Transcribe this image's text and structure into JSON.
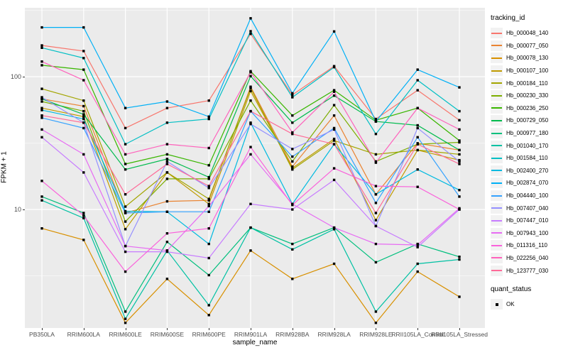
{
  "colors": {
    "panel_background": "#EBEBEB",
    "gridline": "#FFFFFF",
    "axis_text": "#4D4D4D",
    "tick_mark": "#333333",
    "point_marker": "#000000",
    "legend_key_background": "#F2F2F2"
  },
  "chart_data": {
    "type": "line",
    "title": "",
    "xlabel": "sample_name",
    "ylabel": "FPKM + 1",
    "y_scale": "log10",
    "ylim": [
      1.28,
      330
    ],
    "y_major_ticks": [
      10,
      100
    ],
    "y_minor_ticks": [
      3.162,
      31.62,
      316.2
    ],
    "grid": "on",
    "legend_position": "right",
    "marker": "small-black-square",
    "categories": [
      "PB350LA",
      "RRIM600LA",
      "RRIM600LE",
      "RRIM600SE",
      "RRIM600PE",
      "RRIM901LA",
      "RRIM928BA",
      "RRIM928LA",
      "RRIM928LE",
      "RRII105LA_Control",
      "RRII105LA_Stressed"
    ],
    "legend_title": "tracking_id",
    "series": [
      {
        "name": "Hb_000048_140",
        "color": "#F8766D",
        "values": [
          172,
          156,
          41,
          58,
          66,
          210,
          73,
          120,
          48,
          79,
          47
        ]
      },
      {
        "name": "Hb_000077_050",
        "color": "#EA8331",
        "values": [
          68,
          60,
          9.4,
          11.5,
          11.7,
          84,
          21,
          51,
          13,
          31.5,
          28
        ]
      },
      {
        "name": "Hb_000078_130",
        "color": "#D89000",
        "values": [
          7.2,
          5.9,
          1.4,
          3.0,
          1.6,
          4.9,
          3.0,
          3.9,
          1.4,
          3.4,
          2.2
        ]
      },
      {
        "name": "Hb_000107_100",
        "color": "#C09B00",
        "values": [
          58,
          50,
          7.1,
          19,
          11,
          78,
          20.5,
          34,
          8.3,
          28,
          23.5
        ]
      },
      {
        "name": "Hb_000184_110",
        "color": "#A3A500",
        "values": [
          81,
          66,
          10.5,
          19,
          12,
          82,
          20,
          33,
          26,
          28,
          26
        ]
      },
      {
        "name": "Hb_000230_330",
        "color": "#7CAE00",
        "values": [
          65,
          55,
          8.1,
          17,
          17,
          66,
          23,
          61,
          23,
          31,
          32
        ]
      },
      {
        "name": "Hb_000236_250",
        "color": "#39B600",
        "values": [
          122,
          113,
          22,
          26,
          21.5,
          110,
          51,
          79,
          47,
          58,
          33
        ]
      },
      {
        "name": "Hb_000729_050",
        "color": "#00BB4E",
        "values": [
          68,
          52,
          20,
          24,
          17.5,
          101,
          45,
          72,
          46,
          43,
          28
        ]
      },
      {
        "name": "Hb_000977_180",
        "color": "#00BF7D",
        "values": [
          12.5,
          9.4,
          1.7,
          5.7,
          3.2,
          7.3,
          5.5,
          7.3,
          4.0,
          5.5,
          4.4
        ]
      },
      {
        "name": "Hb_001040_170",
        "color": "#00C1A3",
        "values": [
          11.7,
          8.6,
          1.5,
          4.9,
          1.9,
          7.3,
          5.0,
          7.1,
          1.7,
          3.9,
          4.2
        ]
      },
      {
        "name": "Hb_001584_110",
        "color": "#00BFC4",
        "values": [
          165,
          138,
          31,
          45,
          48,
          220,
          70,
          118,
          37,
          94,
          55
        ]
      },
      {
        "name": "Hb_002400_270",
        "color": "#00BAE0",
        "values": [
          56,
          48,
          9.7,
          9.6,
          5.5,
          45,
          11,
          31,
          13,
          20,
          14
        ]
      },
      {
        "name": "Hb_002874_070",
        "color": "#00B0F6",
        "values": [
          235,
          235,
          58,
          65,
          50,
          275,
          75,
          219,
          46,
          113,
          83
        ]
      },
      {
        "name": "Hb_004440_100",
        "color": "#35A2FF",
        "values": [
          49,
          41,
          9.4,
          9.6,
          9.6,
          55,
          25,
          41,
          11.2,
          35,
          12.5
        ]
      },
      {
        "name": "Hb_007407_040",
        "color": "#9590FF",
        "values": [
          70,
          45,
          5.3,
          23,
          14.5,
          44,
          28.5,
          40,
          7.5,
          41,
          23
        ]
      },
      {
        "name": "Hb_007447_010",
        "color": "#C77CFF",
        "values": [
          35,
          19,
          4.8,
          4.8,
          4.3,
          11,
          10,
          16.7,
          7.5,
          5.2,
          10
        ]
      },
      {
        "name": "Hb_007943_100",
        "color": "#E76BF3",
        "values": [
          40,
          26,
          5.3,
          4.9,
          10.6,
          26,
          11,
          7.3,
          5.5,
          5.4,
          10.2
        ]
      },
      {
        "name": "Hb_011316_110",
        "color": "#FA62DB",
        "values": [
          16.4,
          9.0,
          3.4,
          6.6,
          7.2,
          29.5,
          10.8,
          20.4,
          15,
          14.8,
          10
        ]
      },
      {
        "name": "Hb_022256_040",
        "color": "#FF62BC",
        "values": [
          130,
          94,
          26,
          31,
          29,
          108,
          38,
          77,
          22.5,
          58,
          40
        ]
      },
      {
        "name": "Hb_123777_030",
        "color": "#FF6A98",
        "values": [
          51,
          45,
          13,
          22,
          15,
          55,
          37,
          31,
          9.4,
          31,
          22
        ]
      }
    ],
    "quant_legend": {
      "title": "quant_status",
      "items": [
        "OK"
      ]
    }
  }
}
